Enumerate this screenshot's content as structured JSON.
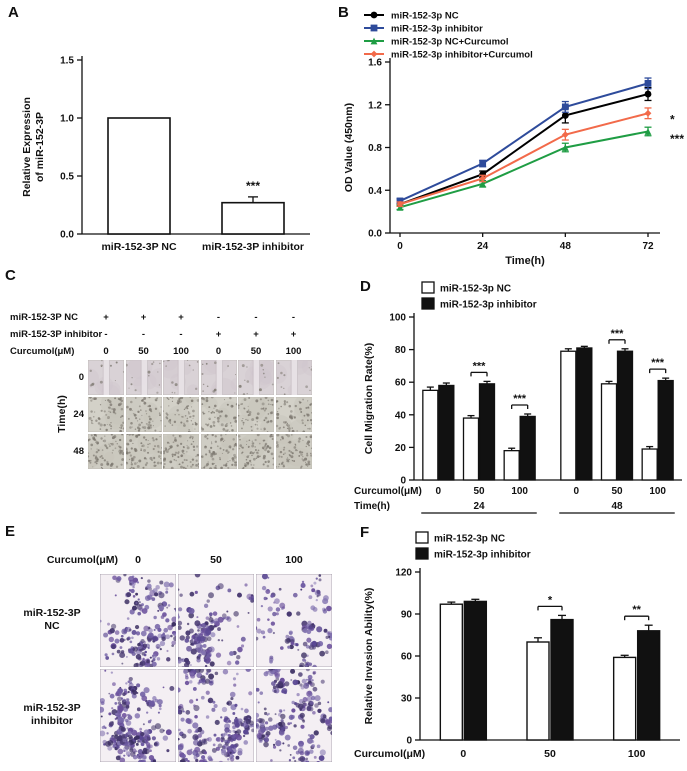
{
  "figure": {
    "panel_labels": {
      "A": "A",
      "B": "B",
      "C": "C",
      "D": "D",
      "E": "E",
      "F": "F"
    }
  },
  "chart_data": [
    {
      "id": "A",
      "type": "bar",
      "categories": [
        "miR-152-3P NC",
        "miR-152-3P inhibitor"
      ],
      "values": [
        1.0,
        0.27
      ],
      "errors": [
        0,
        0.05
      ],
      "sig_labels": [
        "",
        "***"
      ],
      "ylabel_lines": [
        "Relative Expression",
        "of miR-152-3P"
      ],
      "ylim": [
        0,
        1.5
      ],
      "yticks": [
        "0.0",
        "0.5",
        "1.0",
        "1.5"
      ],
      "bar_fill": "#ffffff"
    },
    {
      "id": "B",
      "type": "line",
      "x": [
        0,
        24,
        48,
        72
      ],
      "xticks": [
        "0",
        "24",
        "48",
        "72"
      ],
      "series": [
        {
          "name": "miR-152-3p NC",
          "color": "#000000",
          "marker": "circle",
          "values": [
            0.27,
            0.55,
            1.1,
            1.3
          ],
          "errors": [
            0.02,
            0.03,
            0.07,
            0.06
          ]
        },
        {
          "name": "miR-152-3p inhibitor",
          "color": "#2e4b9b",
          "marker": "square",
          "values": [
            0.3,
            0.65,
            1.18,
            1.4
          ],
          "errors": [
            0.02,
            0.03,
            0.05,
            0.05
          ]
        },
        {
          "name": "miR-152-3p NC+Curcumol",
          "color": "#1f9d44",
          "marker": "triangle",
          "values": [
            0.24,
            0.46,
            0.8,
            0.95
          ],
          "errors": [
            0.02,
            0.03,
            0.04,
            0.04
          ]
        },
        {
          "name": "miR-152-3p inhibitor+Curcumol",
          "color": "#f26a4a",
          "marker": "diamond",
          "values": [
            0.27,
            0.51,
            0.92,
            1.12
          ],
          "errors": [
            0.02,
            0.03,
            0.05,
            0.05
          ]
        }
      ],
      "xlabel": "Time(h)",
      "ylabel": "OD Value (450nm)",
      "ylim": [
        0,
        1.6
      ],
      "yticks": [
        "0.0",
        "0.4",
        "0.8",
        "1.2",
        "1.6"
      ],
      "right_annotations": [
        {
          "text": "*",
          "at_value": 1.06
        },
        {
          "text": "***",
          "at_value": 0.88
        }
      ]
    },
    {
      "id": "D",
      "type": "grouped-bar",
      "series": [
        {
          "name": "miR-152-3p NC",
          "fill": "#ffffff",
          "values": [
            55,
            38,
            18,
            79,
            59,
            19
          ],
          "errors": [
            2,
            1.5,
            1.5,
            1.5,
            1.5,
            1.5
          ]
        },
        {
          "name": "miR-152-3p inhibitor",
          "fill": "#111111",
          "values": [
            58,
            59,
            39,
            81,
            79,
            61
          ],
          "errors": [
            1.5,
            1.5,
            1.5,
            1,
            1.5,
            1.5
          ]
        }
      ],
      "categories": [
        "0",
        "50",
        "100",
        "0",
        "50",
        "100"
      ],
      "sig": [
        "",
        "***",
        "***",
        "",
        "***",
        "***"
      ],
      "ylabel": "Cell Migration Rate(%)",
      "ylim": [
        0,
        100
      ],
      "yticks": [
        "0",
        "20",
        "40",
        "60",
        "80",
        "100"
      ],
      "x_rows": [
        "Curcumol(μM)",
        "Time(h)"
      ],
      "time_groups": [
        {
          "text": "24",
          "cols": [
            0,
            1,
            2
          ]
        },
        {
          "text": "48",
          "cols": [
            3,
            4,
            5
          ]
        }
      ]
    },
    {
      "id": "F",
      "type": "grouped-bar",
      "series": [
        {
          "name": "miR-152-3p NC",
          "fill": "#ffffff",
          "values": [
            97,
            70,
            59
          ],
          "errors": [
            1.5,
            3,
            1.5
          ]
        },
        {
          "name": "miR-152-3p inhibitor",
          "fill": "#111111",
          "values": [
            99,
            86,
            78
          ],
          "errors": [
            1.5,
            3,
            4
          ]
        }
      ],
      "categories": [
        "0",
        "50",
        "100"
      ],
      "sig": [
        "",
        "*",
        "**"
      ],
      "ylabel": "Relative Invasion Ability(%)",
      "ylim": [
        0,
        120
      ],
      "yticks": [
        "0",
        "30",
        "60",
        "90",
        "120"
      ],
      "xlabel": "Curcumol(μM)"
    }
  ],
  "panel_c": {
    "header_rows": [
      {
        "label": "miR-152-3P NC",
        "values": [
          "+",
          "+",
          "+",
          "-",
          "-",
          "-"
        ]
      },
      {
        "label": "miR-152-3P inhibitor",
        "values": [
          "-",
          "-",
          "-",
          "+",
          "+",
          "+"
        ]
      },
      {
        "label": "Curcumol(μM)",
        "values": [
          "0",
          "50",
          "100",
          "0",
          "50",
          "100"
        ]
      }
    ],
    "time_label": "Time(h)",
    "time_values": [
      "0",
      "24",
      "48"
    ]
  },
  "panel_e": {
    "col_label": "Curcumol(μM)",
    "col_values": [
      "0",
      "50",
      "100"
    ],
    "row_labels": [
      [
        "miR-152-3P",
        "NC"
      ],
      [
        "miR-152-3P",
        "inhibitor"
      ]
    ]
  }
}
